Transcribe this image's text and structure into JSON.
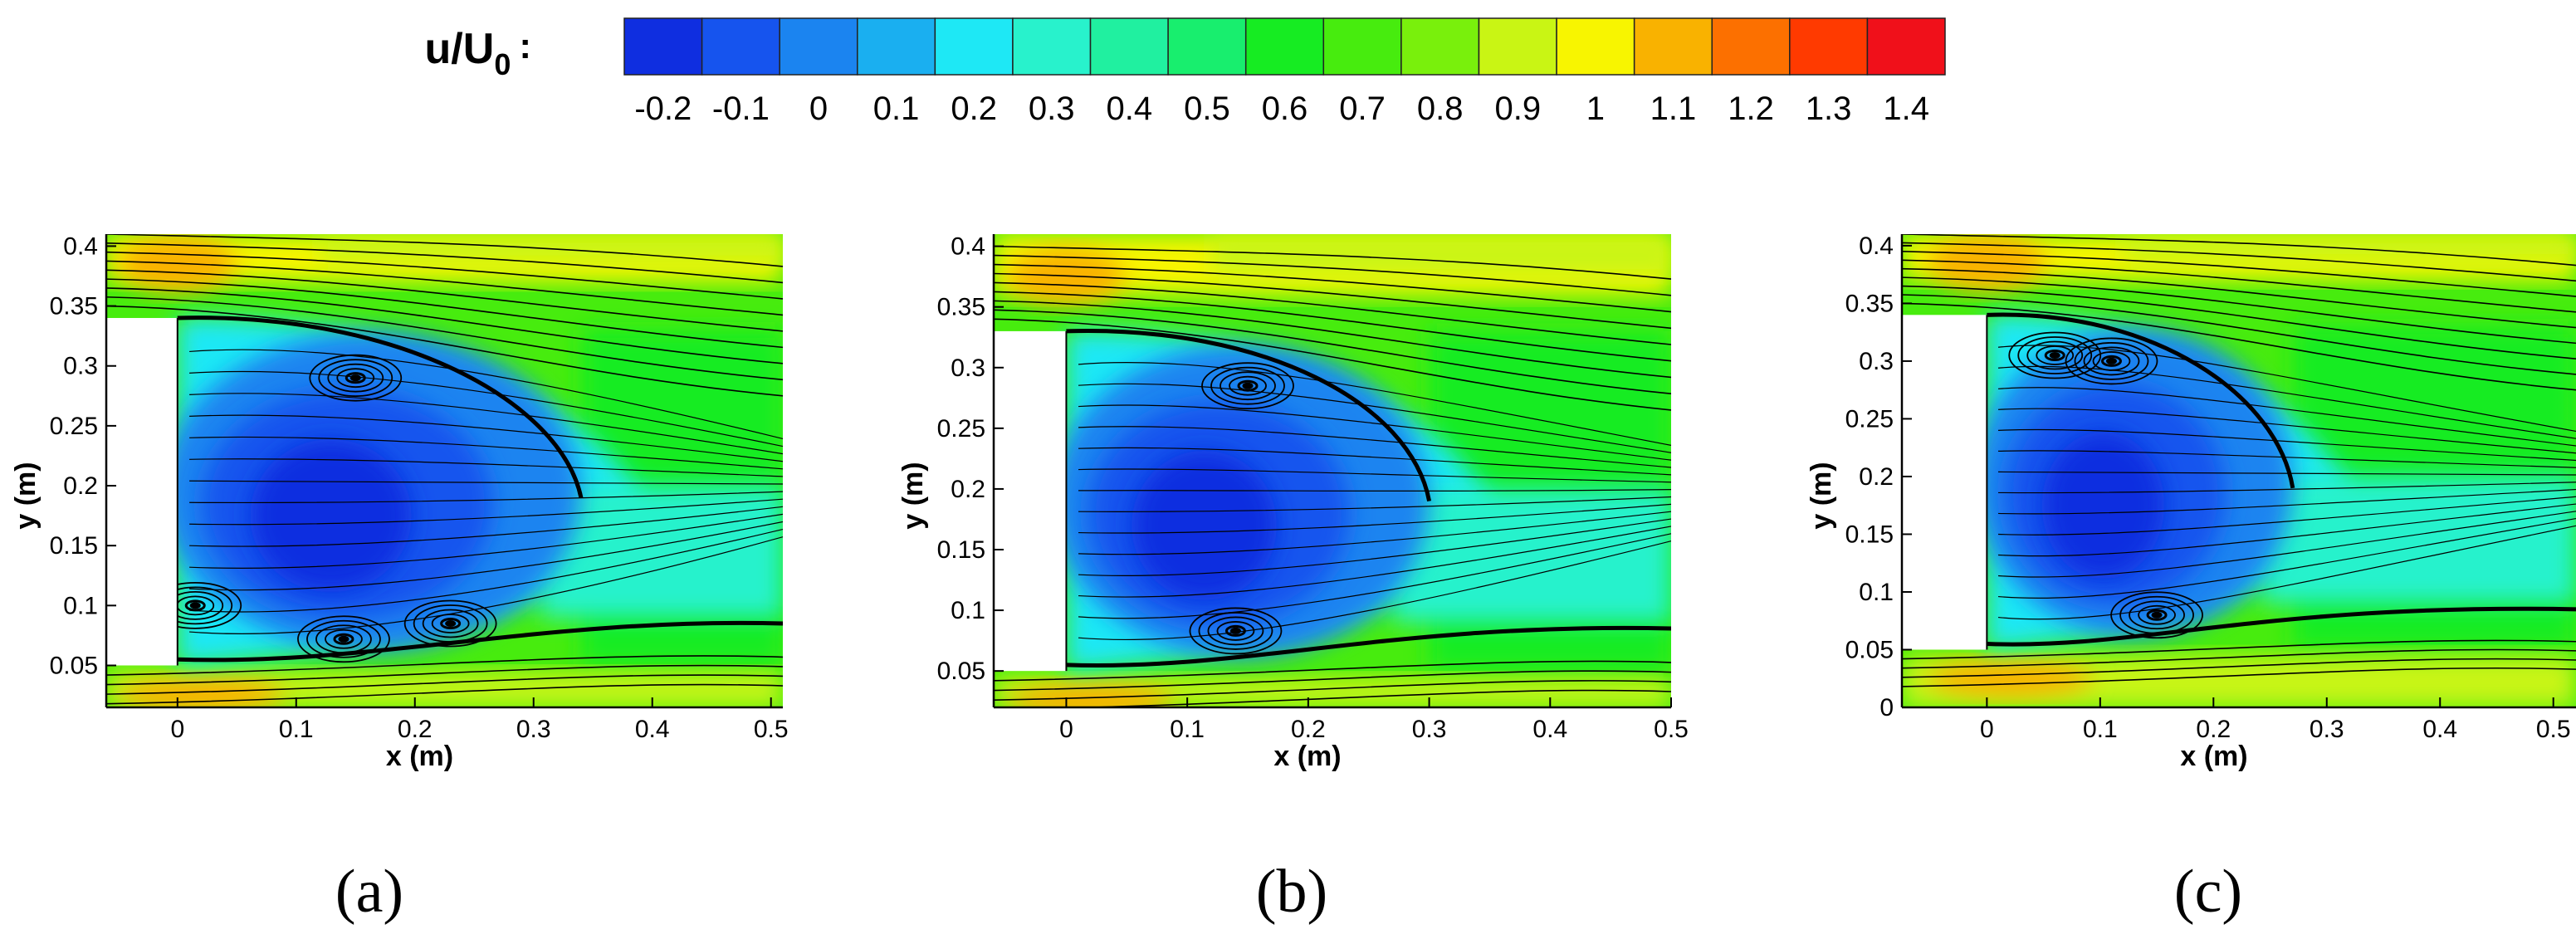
{
  "colorbar": {
    "label_main": "u/U",
    "label_sub": "0",
    "label_suffix": ":",
    "levels": [
      -0.2,
      -0.1,
      0,
      0.1,
      0.2,
      0.3,
      0.4,
      0.5,
      0.6,
      0.7,
      0.8,
      0.9,
      1,
      1.1,
      1.2,
      1.3,
      1.4
    ],
    "tick_labels": [
      "-0.2",
      "-0.1",
      "0",
      "0.1",
      "0.2",
      "0.3",
      "0.4",
      "0.5",
      "0.6",
      "0.7",
      "0.8",
      "0.9",
      "1",
      "1.1",
      "1.2",
      "1.3",
      "1.4"
    ],
    "colors": [
      "#0f2ee0",
      "#1654ee",
      "#1b84f0",
      "#1aaff0",
      "#1ee8f5",
      "#28f2cc",
      "#20f0a0",
      "#18ee6e",
      "#16ec22",
      "#47ec0e",
      "#79f00c",
      "#c9f514",
      "#f8f500",
      "#f9b200",
      "#fc7000",
      "#ff3a00",
      "#f0101a"
    ]
  },
  "chart_data": [
    {
      "type": "contour",
      "panel_label": "(a)",
      "xlabel": "x (m)",
      "ylabel": "y (m)",
      "xlim": [
        -0.06,
        0.51
      ],
      "ylim": [
        0.015,
        0.41
      ],
      "xticks": [
        0,
        0.1,
        0.2,
        0.3,
        0.4,
        0.5
      ],
      "xtick_labels": [
        "0",
        "0.1",
        "0.2",
        "0.3",
        "0.4",
        "0.5"
      ],
      "yticks": [
        0.05,
        0.1,
        0.15,
        0.2,
        0.25,
        0.3,
        0.35,
        0.4
      ],
      "ytick_labels": [
        "0.05",
        "0.1",
        "0.15",
        "0.2",
        "0.25",
        "0.3",
        "0.35",
        "0.4"
      ],
      "obstacle": {
        "x": [
          -0.06,
          0
        ],
        "y": [
          0.05,
          0.34
        ]
      },
      "recirculation_end_x": 0.34,
      "vortices": [
        {
          "x": 0.15,
          "y": 0.29
        },
        {
          "x": 0.23,
          "y": 0.085
        },
        {
          "x": 0.14,
          "y": 0.072
        },
        {
          "x": 0.015,
          "y": 0.1
        }
      ]
    },
    {
      "type": "contour",
      "panel_label": "(b)",
      "xlabel": "x (m)",
      "ylabel": "y (m)",
      "xlim": [
        -0.06,
        0.5
      ],
      "ylim": [
        0.02,
        0.41
      ],
      "xticks": [
        0,
        0.1,
        0.2,
        0.3,
        0.4,
        0.5
      ],
      "xtick_labels": [
        "0",
        "0.1",
        "0.2",
        "0.3",
        "0.4",
        "0.5"
      ],
      "yticks": [
        0.05,
        0.1,
        0.15,
        0.2,
        0.25,
        0.3,
        0.35,
        0.4
      ],
      "ytick_labels": [
        "0.05",
        "0.1",
        "0.15",
        "0.2",
        "0.25",
        "0.3",
        "0.35",
        "0.4"
      ],
      "obstacle": {
        "x": [
          -0.06,
          0
        ],
        "y": [
          0.05,
          0.33
        ]
      },
      "recirculation_end_x": 0.3,
      "vortices": [
        {
          "x": 0.15,
          "y": 0.285
        },
        {
          "x": 0.14,
          "y": 0.083
        }
      ]
    },
    {
      "type": "contour",
      "panel_label": "(c)",
      "xlabel": "x (m)",
      "ylabel": "y (m)",
      "xlim": [
        -0.075,
        0.52
      ],
      "ylim": [
        0,
        0.41
      ],
      "xticks": [
        0,
        0.1,
        0.2,
        0.3,
        0.4,
        0.5
      ],
      "xtick_labels": [
        "0",
        "0.1",
        "0.2",
        "0.3",
        "0.4",
        "0.5"
      ],
      "yticks": [
        0,
        0.05,
        0.1,
        0.15,
        0.2,
        0.25,
        0.3,
        0.35,
        0.4
      ],
      "ytick_labels": [
        "0",
        "0.05",
        "0.1",
        "0.15",
        "0.2",
        "0.25",
        "0.3",
        "0.35",
        "0.4"
      ],
      "obstacle": {
        "x": [
          -0.075,
          0
        ],
        "y": [
          0.05,
          0.34
        ]
      },
      "recirculation_end_x": 0.27,
      "vortices": [
        {
          "x": 0.06,
          "y": 0.305
        },
        {
          "x": 0.11,
          "y": 0.3
        },
        {
          "x": 0.15,
          "y": 0.08
        }
      ]
    }
  ]
}
